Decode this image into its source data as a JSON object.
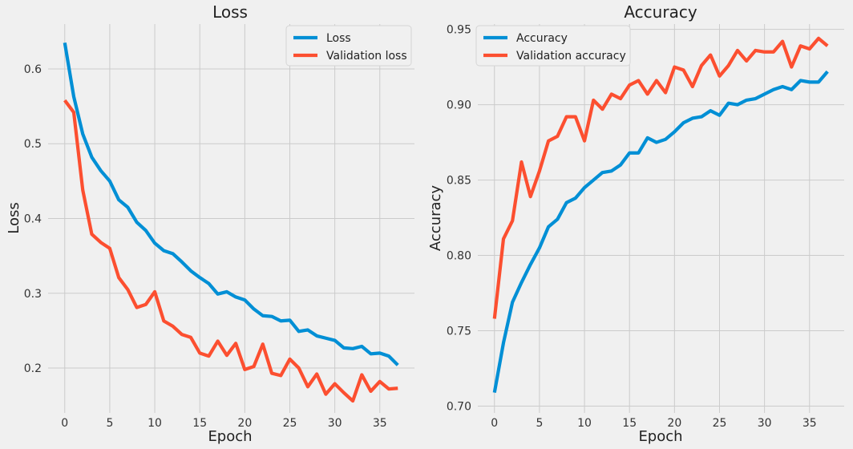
{
  "colors": {
    "loss": "#008fd5",
    "val": "#fc4f30",
    "background": "#f0f0f0",
    "grid": "#cbcbcb"
  },
  "chart_data": [
    {
      "type": "line",
      "title": "Loss",
      "xlabel": "Epoch",
      "ylabel": "Loss",
      "xlim": [
        -1.85,
        38.85
      ],
      "ylim": [
        0.14,
        0.66
      ],
      "xticks": [
        0,
        5,
        10,
        15,
        20,
        25,
        30,
        35
      ],
      "yticks": [
        0.2,
        0.3,
        0.4,
        0.5,
        0.6
      ],
      "grid": true,
      "legend_position": "top-right",
      "x": [
        0,
        1,
        2,
        3,
        4,
        5,
        6,
        7,
        8,
        9,
        10,
        11,
        12,
        13,
        14,
        15,
        16,
        17,
        18,
        19,
        20,
        21,
        22,
        23,
        24,
        25,
        26,
        27,
        28,
        29,
        30,
        31,
        32,
        33,
        34,
        35,
        36,
        37
      ],
      "series": [
        {
          "name": "Loss",
          "color_key": "loss",
          "values": [
            0.635,
            0.563,
            0.513,
            0.482,
            0.464,
            0.45,
            0.425,
            0.415,
            0.395,
            0.384,
            0.367,
            0.357,
            0.353,
            0.342,
            0.33,
            0.321,
            0.313,
            0.299,
            0.302,
            0.295,
            0.291,
            0.279,
            0.27,
            0.269,
            0.263,
            0.264,
            0.249,
            0.251,
            0.243,
            0.24,
            0.237,
            0.227,
            0.226,
            0.229,
            0.219,
            0.22,
            0.216,
            0.204
          ]
        },
        {
          "name": "Validation loss",
          "color_key": "val",
          "values": [
            0.558,
            0.542,
            0.438,
            0.379,
            0.368,
            0.36,
            0.321,
            0.305,
            0.281,
            0.285,
            0.302,
            0.263,
            0.256,
            0.245,
            0.241,
            0.22,
            0.216,
            0.236,
            0.217,
            0.233,
            0.198,
            0.202,
            0.232,
            0.193,
            0.19,
            0.212,
            0.2,
            0.175,
            0.192,
            0.165,
            0.179,
            0.167,
            0.156,
            0.191,
            0.169,
            0.182,
            0.172,
            0.173
          ]
        }
      ]
    },
    {
      "type": "line",
      "title": "Accuracy",
      "xlabel": "Epoch",
      "ylabel": "Accuracy",
      "xlim": [
        -1.85,
        38.85
      ],
      "ylim": [
        0.6955,
        0.9535
      ],
      "xticks": [
        0,
        5,
        10,
        15,
        20,
        25,
        30,
        35
      ],
      "yticks": [
        0.7,
        0.75,
        0.8,
        0.85,
        0.9,
        0.95
      ],
      "grid": true,
      "legend_position": "top-left",
      "x": [
        0,
        1,
        2,
        3,
        4,
        5,
        6,
        7,
        8,
        9,
        10,
        11,
        12,
        13,
        14,
        15,
        16,
        17,
        18,
        19,
        20,
        21,
        22,
        23,
        24,
        25,
        26,
        27,
        28,
        29,
        30,
        31,
        32,
        33,
        34,
        35,
        36,
        37
      ],
      "series": [
        {
          "name": "Accuracy",
          "color_key": "loss",
          "values": [
            0.709,
            0.742,
            0.769,
            0.782,
            0.794,
            0.805,
            0.819,
            0.824,
            0.835,
            0.838,
            0.845,
            0.85,
            0.855,
            0.856,
            0.86,
            0.868,
            0.868,
            0.878,
            0.875,
            0.877,
            0.882,
            0.888,
            0.891,
            0.892,
            0.896,
            0.893,
            0.901,
            0.9,
            0.903,
            0.904,
            0.907,
            0.91,
            0.912,
            0.91,
            0.916,
            0.915,
            0.915,
            0.922
          ]
        },
        {
          "name": "Validation accuracy",
          "color_key": "val",
          "values": [
            0.758,
            0.811,
            0.823,
            0.862,
            0.839,
            0.856,
            0.876,
            0.879,
            0.892,
            0.892,
            0.876,
            0.903,
            0.897,
            0.907,
            0.904,
            0.913,
            0.916,
            0.907,
            0.916,
            0.908,
            0.925,
            0.923,
            0.912,
            0.926,
            0.933,
            0.919,
            0.926,
            0.936,
            0.929,
            0.936,
            0.935,
            0.935,
            0.942,
            0.925,
            0.939,
            0.937,
            0.944,
            0.939
          ]
        }
      ]
    }
  ]
}
